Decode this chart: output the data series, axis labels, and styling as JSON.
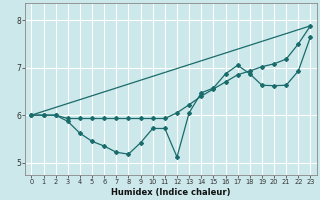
{
  "title": "",
  "xlabel": "Humidex (Indice chaleur)",
  "background_color": "#cce8ea",
  "grid_color": "#ffffff",
  "line_color": "#1a6b6b",
  "xlim": [
    -0.5,
    23.5
  ],
  "ylim": [
    4.75,
    8.35
  ],
  "xticks": [
    0,
    1,
    2,
    3,
    4,
    5,
    6,
    7,
    8,
    9,
    10,
    11,
    12,
    13,
    14,
    15,
    16,
    17,
    18,
    19,
    20,
    21,
    22,
    23
  ],
  "yticks": [
    5,
    6,
    7,
    8
  ],
  "series1_x": [
    0,
    1,
    2,
    3,
    4,
    5,
    6,
    7,
    8,
    9,
    10,
    11,
    12,
    13,
    14,
    15,
    16,
    17,
    18,
    19,
    20,
    21,
    22,
    23
  ],
  "series1_y": [
    6.0,
    6.0,
    6.0,
    5.87,
    5.62,
    5.45,
    5.35,
    5.22,
    5.18,
    5.42,
    5.72,
    5.72,
    5.12,
    6.05,
    6.47,
    6.57,
    6.87,
    7.05,
    6.87,
    6.63,
    6.62,
    6.63,
    6.93,
    7.65
  ],
  "series2_x": [
    0,
    1,
    2,
    3,
    4,
    5,
    6,
    7,
    8,
    9,
    10,
    11,
    12,
    13,
    14,
    15,
    16,
    17,
    18,
    19,
    20,
    21,
    22,
    23
  ],
  "series2_y": [
    6.0,
    6.0,
    6.0,
    5.93,
    5.93,
    5.93,
    5.93,
    5.93,
    5.93,
    5.93,
    5.93,
    5.93,
    6.05,
    6.22,
    6.4,
    6.55,
    6.7,
    6.85,
    6.93,
    7.02,
    7.08,
    7.18,
    7.5,
    7.88
  ],
  "series3_x": [
    0,
    23
  ],
  "series3_y": [
    6.0,
    7.88
  ],
  "marker_size": 2.0,
  "line_width": 0.9
}
